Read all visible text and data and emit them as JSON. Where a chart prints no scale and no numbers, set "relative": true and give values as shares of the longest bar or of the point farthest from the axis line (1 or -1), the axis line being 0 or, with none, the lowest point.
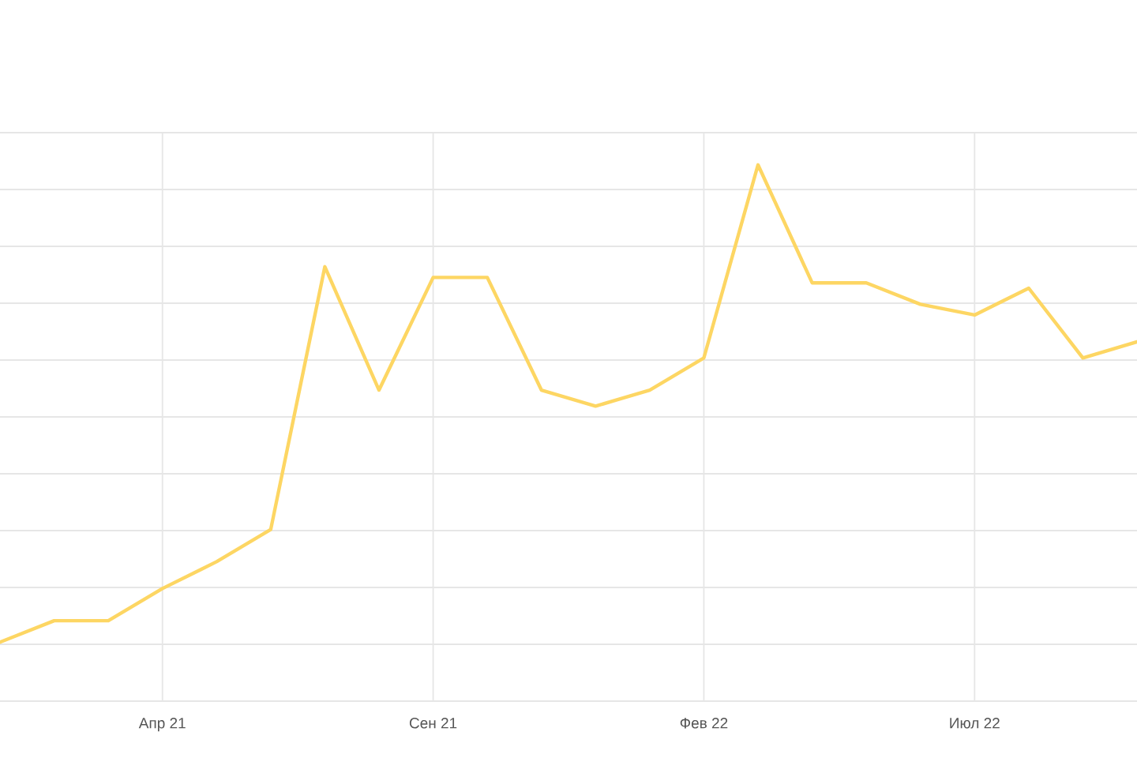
{
  "chart_data": {
    "type": "line",
    "relative": true,
    "grid": true,
    "categories": [
      null,
      null,
      null,
      "Апр 21",
      null,
      null,
      null,
      null,
      "Сен 21",
      null,
      null,
      null,
      null,
      "Фев 22",
      null,
      null,
      null,
      null,
      "Июл 22",
      null,
      null,
      null
    ],
    "series": [
      {
        "color": "#fdd663",
        "values": [
          0.11,
          0.15,
          0.15,
          0.21,
          0.26,
          0.32,
          0.81,
          0.58,
          0.79,
          0.79,
          0.58,
          0.55,
          0.58,
          0.64,
          1,
          0.78,
          0.78,
          0.74,
          0.72,
          0.77,
          0.64,
          0.67
        ]
      }
    ]
  }
}
